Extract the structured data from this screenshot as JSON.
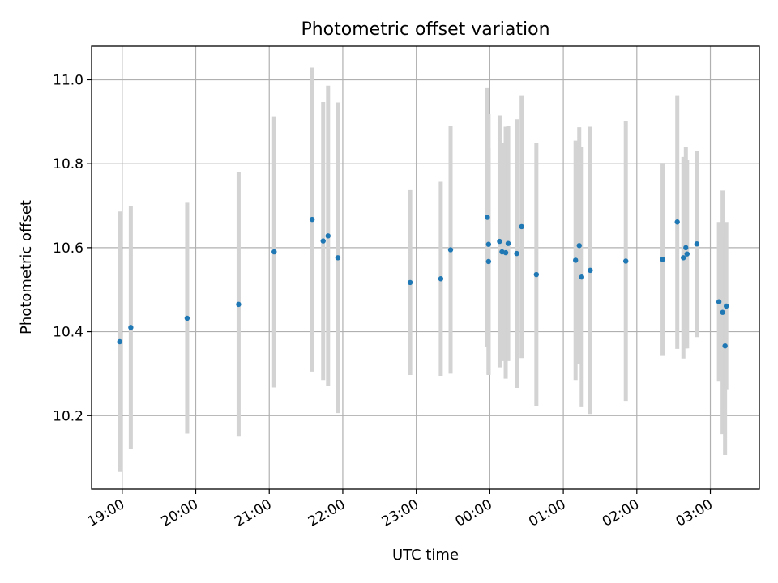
{
  "chart_data": {
    "type": "scatter",
    "title": "Photometric offset variation",
    "xlabel": "UTC time",
    "ylabel": "Photometric offset",
    "x_tick_labels": [
      "19:00",
      "20:00",
      "21:00",
      "22:00",
      "23:00",
      "00:00",
      "01:00",
      "02:00",
      "03:00"
    ],
    "x_tick_times": [
      "19:00",
      "20:00",
      "21:00",
      "22:00",
      "23:00",
      "00:00",
      "01:00",
      "02:00",
      "03:00"
    ],
    "y_ticks": [
      10.2,
      10.4,
      10.6,
      10.8,
      11.0
    ],
    "y_tick_labels": [
      "10.2",
      "10.4",
      "10.6",
      "10.8",
      "11.0"
    ],
    "xlim": [
      "18:35",
      "03:40"
    ],
    "ylim": [
      10.025,
      11.08
    ],
    "grid": true,
    "series": [
      {
        "marker_color": "#1f77b4",
        "errorbar_color": "#d3d3d3",
        "points": [
          {
            "t": "18:58",
            "y": 10.376,
            "err": 0.31
          },
          {
            "t": "19:07",
            "y": 10.41,
            "err": 0.29
          },
          {
            "t": "19:53",
            "y": 10.432,
            "err": 0.275
          },
          {
            "t": "20:35",
            "y": 10.465,
            "err": 0.315
          },
          {
            "t": "21:04",
            "y": 10.59,
            "err": 0.323
          },
          {
            "t": "21:35",
            "y": 10.667,
            "err": 0.362
          },
          {
            "t": "21:44",
            "y": 10.616,
            "err": 0.331
          },
          {
            "t": "21:48",
            "y": 10.628,
            "err": 0.358
          },
          {
            "t": "21:56",
            "y": 10.576,
            "err": 0.37
          },
          {
            "t": "22:55",
            "y": 10.517,
            "err": 0.22
          },
          {
            "t": "23:20",
            "y": 10.526,
            "err": 0.231
          },
          {
            "t": "23:28",
            "y": 10.595,
            "err": 0.295
          },
          {
            "t": "23:58",
            "y": 10.672,
            "err": 0.308
          },
          {
            "t": "23:59",
            "y": 10.567,
            "err": 0.27
          },
          {
            "t": "23:59",
            "y": 10.608,
            "err": 0.31
          },
          {
            "t": "00:08",
            "y": 10.615,
            "err": 0.3
          },
          {
            "t": "00:10",
            "y": 10.59,
            "err": 0.26
          },
          {
            "t": "00:13",
            "y": 10.588,
            "err": 0.3
          },
          {
            "t": "00:15",
            "y": 10.61,
            "err": 0.28
          },
          {
            "t": "00:22",
            "y": 10.586,
            "err": 0.32
          },
          {
            "t": "00:26",
            "y": 10.65,
            "err": 0.313
          },
          {
            "t": "00:38",
            "y": 10.536,
            "err": 0.313
          },
          {
            "t": "01:10",
            "y": 10.57,
            "err": 0.285
          },
          {
            "t": "01:13",
            "y": 10.605,
            "err": 0.282
          },
          {
            "t": "01:15",
            "y": 10.53,
            "err": 0.31
          },
          {
            "t": "01:22",
            "y": 10.546,
            "err": 0.342
          },
          {
            "t": "01:51",
            "y": 10.568,
            "err": 0.333
          },
          {
            "t": "02:21",
            "y": 10.572,
            "err": 0.23
          },
          {
            "t": "02:33",
            "y": 10.661,
            "err": 0.302
          },
          {
            "t": "02:38",
            "y": 10.576,
            "err": 0.24
          },
          {
            "t": "02:40",
            "y": 10.6,
            "err": 0.24
          },
          {
            "t": "02:41",
            "y": 10.585,
            "err": 0.225
          },
          {
            "t": "02:49",
            "y": 10.609,
            "err": 0.222
          },
          {
            "t": "03:07",
            "y": 10.471,
            "err": 0.19
          },
          {
            "t": "03:10",
            "y": 10.446,
            "err": 0.29
          },
          {
            "t": "03:12",
            "y": 10.366,
            "err": 0.26
          },
          {
            "t": "03:13",
            "y": 10.461,
            "err": 0.2
          }
        ]
      }
    ]
  }
}
